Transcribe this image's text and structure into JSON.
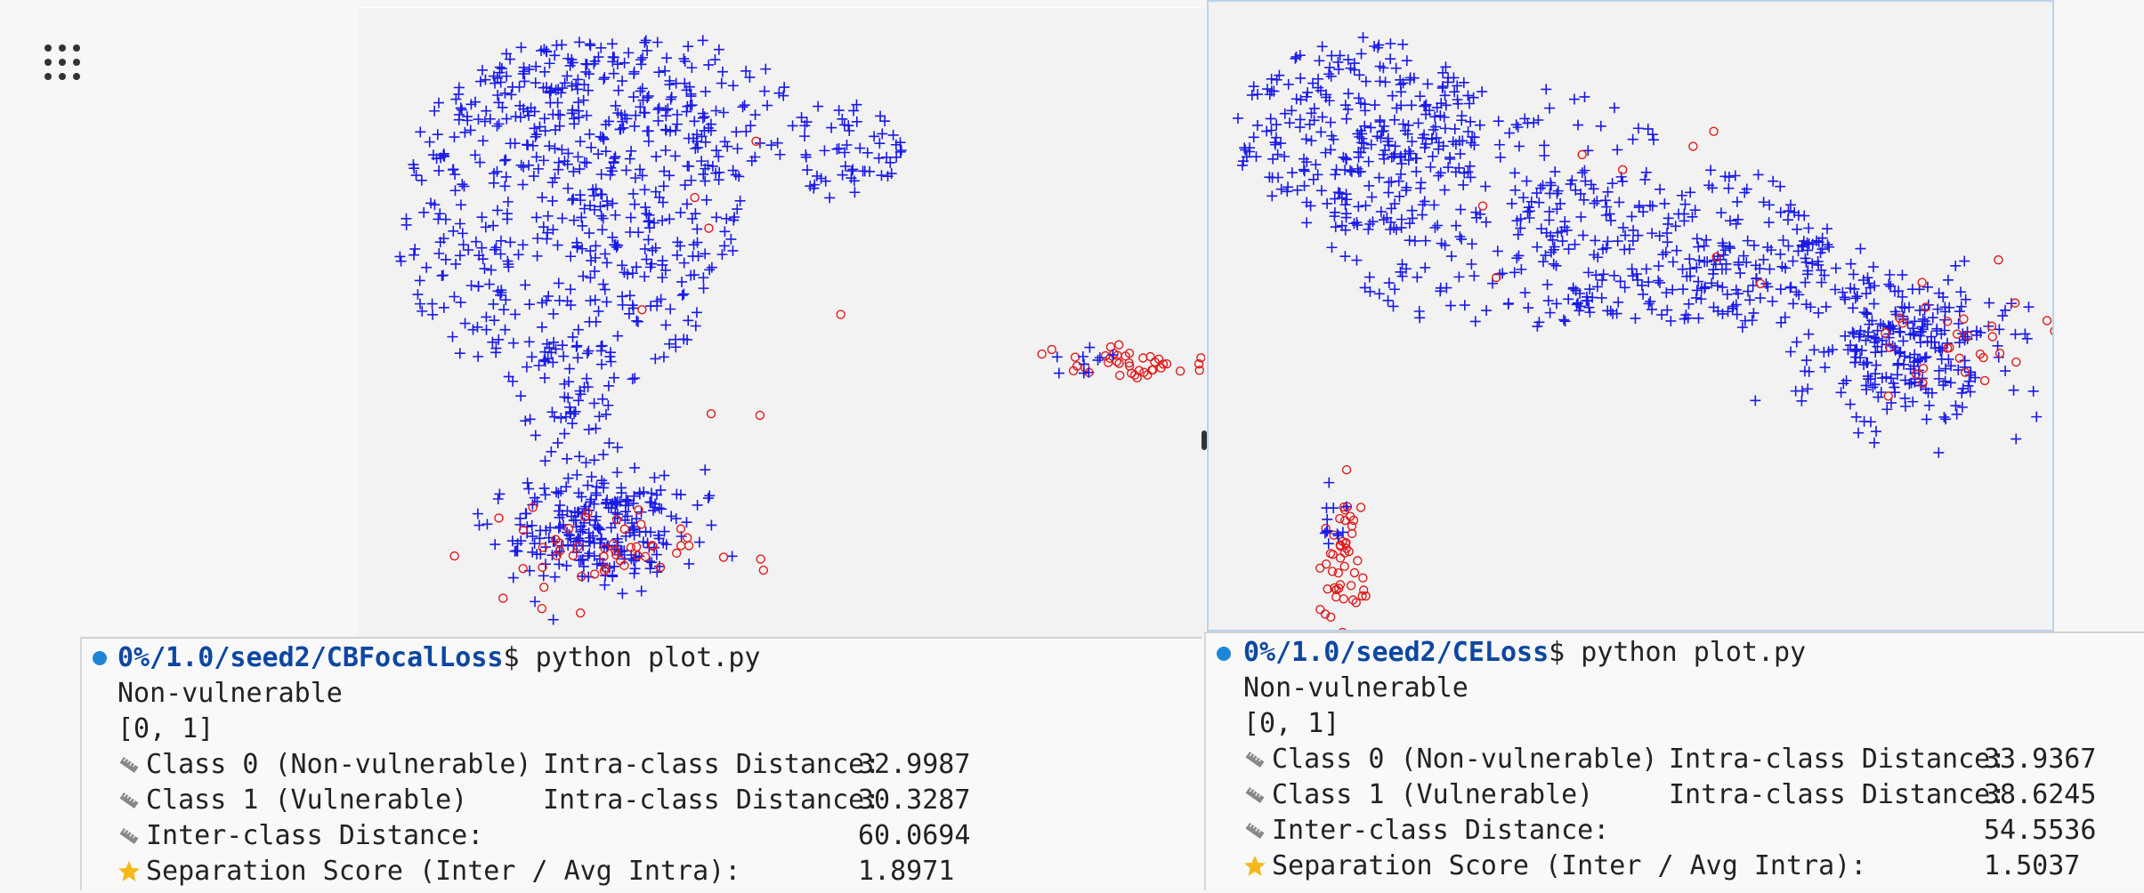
{
  "apps_icon": "grid-icon",
  "colors": {
    "class0": "#1a1ae6",
    "class1": "#e01b1b",
    "prompt_path": "#0d47a1",
    "status_dot": "#1f86d6"
  },
  "plots": [
    {
      "name": "CBFocalLoss",
      "marker_class0": "plus",
      "marker_class1": "circle"
    },
    {
      "name": "CELoss",
      "marker_class0": "plus",
      "marker_class1": "circle"
    }
  ],
  "terminals": [
    {
      "prompt_path": "0%/1.0/seed2/CBFocalLoss",
      "prompt_symbol": "$",
      "command": " python plot.py",
      "label_line": "Non-vulnerable",
      "list_line": "[0, 1]",
      "rows": [
        {
          "icon": "ruler-icon",
          "label": "Class 0 (Non-vulnerable)",
          "metric": "Intra-class Distance:",
          "value": "32.9987"
        },
        {
          "icon": "ruler-icon",
          "label": "Class 1 (Vulnerable)",
          "metric": "Intra-class Distance:",
          "value": "30.3287"
        },
        {
          "icon": "ruler-icon",
          "label": "Inter-class Distance:",
          "metric": "",
          "value": "60.0694"
        },
        {
          "icon": "star-icon",
          "label": "Separation Score (Inter / Avg Intra):",
          "metric": "",
          "value": "1.8971"
        }
      ]
    },
    {
      "prompt_path": "0%/1.0/seed2/CELoss",
      "prompt_symbol": "$",
      "command": " python plot.py",
      "label_line": "Non-vulnerable",
      "list_line": "[0, 1]",
      "rows": [
        {
          "icon": "ruler-icon",
          "label": "Class 0 (Non-vulnerable)",
          "metric": "Intra-class Distance:",
          "value": "33.9367"
        },
        {
          "icon": "ruler-icon",
          "label": "Class 1 (Vulnerable)",
          "metric": "Intra-class Distance:",
          "value": "38.6245"
        },
        {
          "icon": "ruler-icon",
          "label": "Inter-class Distance:",
          "metric": "",
          "value": "54.5536"
        },
        {
          "icon": "star-icon",
          "label": "Separation Score (Inter / Avg Intra):",
          "metric": "",
          "value": "1.5037"
        }
      ]
    }
  ]
}
